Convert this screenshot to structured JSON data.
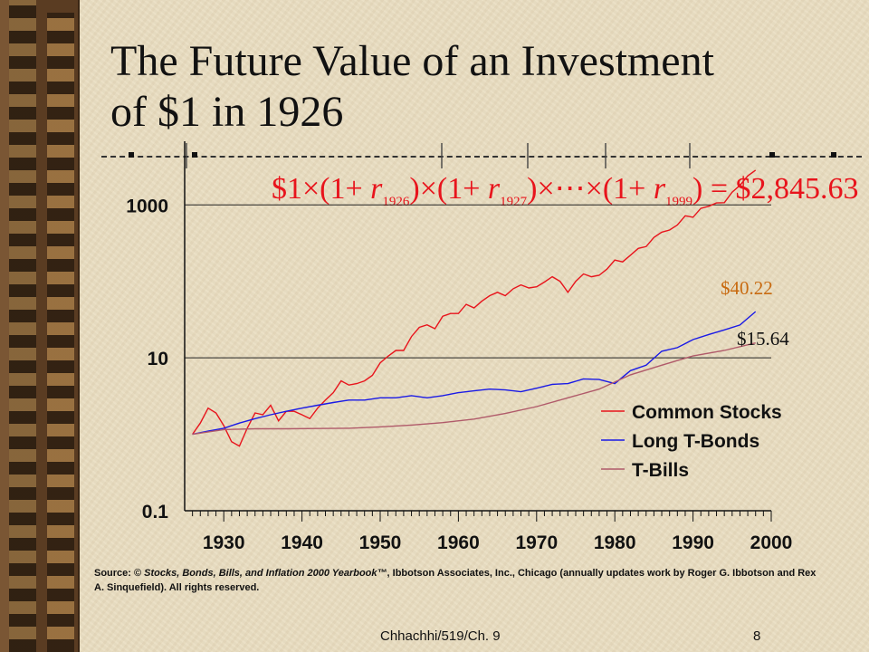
{
  "slide": {
    "title_line1": "The Future Value of an Investment",
    "title_line2": "of $1 in 1926",
    "formula": {
      "lead": "$1",
      "r1_sub": "1926",
      "r2_sub": "1927",
      "r3_sub": "1999",
      "result": "$2,845.63"
    },
    "source": "Source: © Stocks, Bonds, Bills, and Inflation 2000 Yearbook™, Ibbotson Associates, Inc., Chicago (annually updates work by Roger G. Ibbotson and Rex A. Sinquefield). All rights reserved.",
    "source_prefix": "Source: © ",
    "source_italic": "Stocks, Bonds, Bills, and Inflation 2000 Yearbook™",
    "source_rest": ", Ibbotson Associates, Inc., Chicago (annually updates work by Roger G. Ibbotson and Rex A. Sinquefield). All rights reserved.",
    "footer_left": "Chhachhi/519/Ch. 9",
    "footer_right": "8"
  },
  "colors": {
    "stocks": "#e8141c",
    "bonds": "#1a1ae6",
    "bills": "#b05a6a",
    "label_stocks_end": "#c86a10",
    "text": "#111111"
  },
  "chart_data": {
    "type": "line",
    "y_scale": "log",
    "ylim": [
      0.1,
      3000
    ],
    "xlim": [
      1925,
      2000
    ],
    "y_ticks": [
      1000,
      10,
      0.1
    ],
    "y_tick_labels": [
      "1000",
      "10",
      "0.1"
    ],
    "x_ticks": [
      1930,
      1940,
      1950,
      1960,
      1970,
      1980,
      1990,
      2000
    ],
    "x_tick_labels": [
      "1930",
      "1940",
      "1950",
      "1960",
      "1970",
      "1980",
      "1990",
      "2000"
    ],
    "grid": "horizontal at labeled ticks",
    "legend_position": "lower-right",
    "end_labels": [
      {
        "series": "Long T-Bonds",
        "text": "$40.22"
      },
      {
        "series": "T-Bills",
        "text": "$15.64"
      }
    ],
    "series": [
      {
        "name": "Common Stocks",
        "x": [
          1926,
          1927,
          1928,
          1929,
          1930,
          1931,
          1932,
          1933,
          1934,
          1935,
          1936,
          1937,
          1938,
          1939,
          1940,
          1941,
          1942,
          1943,
          1944,
          1945,
          1946,
          1947,
          1948,
          1949,
          1950,
          1951,
          1952,
          1953,
          1954,
          1955,
          1956,
          1957,
          1958,
          1959,
          1960,
          1961,
          1962,
          1963,
          1964,
          1965,
          1966,
          1967,
          1968,
          1969,
          1970,
          1971,
          1972,
          1973,
          1974,
          1975,
          1976,
          1977,
          1978,
          1979,
          1980,
          1981,
          1982,
          1983,
          1984,
          1985,
          1986,
          1987,
          1988,
          1989,
          1990,
          1991,
          1992,
          1993,
          1994,
          1995,
          1996,
          1997,
          1998
        ],
        "y": [
          1.0,
          1.4,
          2.2,
          1.9,
          1.3,
          0.8,
          0.7,
          1.2,
          1.9,
          1.8,
          2.4,
          1.5,
          2.0,
          2.0,
          1.8,
          1.6,
          2.2,
          2.8,
          3.5,
          5.0,
          4.4,
          4.6,
          5.0,
          5.9,
          8.6,
          10.5,
          12.5,
          12.5,
          19.0,
          25.0,
          27.0,
          24.0,
          35.0,
          38.0,
          38.0,
          50.0,
          45.0,
          55.0,
          65.0,
          72.0,
          65.0,
          80.0,
          90.0,
          82.0,
          85.0,
          98.0,
          115.0,
          100.0,
          72.0,
          100.0,
          125.0,
          115.0,
          120.0,
          145.0,
          190.0,
          180.0,
          220.0,
          270.0,
          285.0,
          375.0,
          440.0,
          470.0,
          545.0,
          720.0,
          690.0,
          900.0,
          960.0,
          1060.0,
          1070.0,
          1470.0,
          1800.0,
          2400.0,
          2845.63
        ]
      },
      {
        "name": "Long T-Bonds",
        "x": [
          1926,
          1928,
          1930,
          1932,
          1934,
          1936,
          1938,
          1940,
          1942,
          1944,
          1946,
          1948,
          1950,
          1952,
          1954,
          1956,
          1958,
          1960,
          1962,
          1964,
          1966,
          1968,
          1970,
          1972,
          1974,
          1976,
          1978,
          1980,
          1982,
          1984,
          1986,
          1988,
          1990,
          1992,
          1994,
          1996,
          1998
        ],
        "y": [
          1.0,
          1.1,
          1.2,
          1.4,
          1.6,
          1.8,
          2.0,
          2.2,
          2.4,
          2.6,
          2.8,
          2.8,
          3.0,
          3.0,
          3.2,
          3.0,
          3.2,
          3.5,
          3.7,
          3.9,
          3.8,
          3.6,
          4.0,
          4.5,
          4.6,
          5.3,
          5.2,
          4.6,
          6.8,
          8.0,
          12.2,
          13.6,
          17.3,
          20.2,
          23.2,
          26.9,
          40.22
        ]
      },
      {
        "name": "T-Bills",
        "x": [
          1926,
          1930,
          1934,
          1938,
          1942,
          1946,
          1950,
          1954,
          1958,
          1962,
          1966,
          1970,
          1974,
          1978,
          1982,
          1986,
          1990,
          1994,
          1998
        ],
        "y": [
          1.0,
          1.15,
          1.18,
          1.18,
          1.19,
          1.2,
          1.25,
          1.32,
          1.42,
          1.58,
          1.87,
          2.3,
          3.0,
          3.9,
          6.0,
          8.0,
          10.6,
          12.5,
          15.64
        ]
      }
    ]
  }
}
